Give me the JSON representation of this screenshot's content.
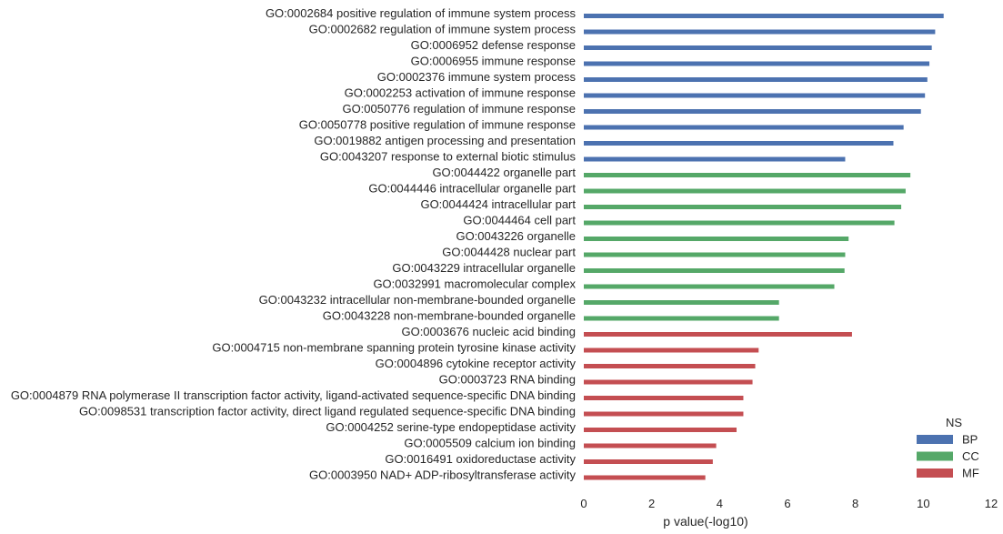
{
  "chart_data": {
    "type": "bar",
    "orientation": "horizontal",
    "xlabel": "p value(-log10)",
    "ylabel": "",
    "xlim": [
      0,
      12
    ],
    "xticks": [
      0,
      2,
      4,
      6,
      8,
      10,
      12
    ],
    "grid": false,
    "legend": {
      "title": "NS",
      "placement": "bottom-right",
      "entries": [
        {
          "name": "BP",
          "color": "#4C72B0"
        },
        {
          "name": "CC",
          "color": "#55A868"
        },
        {
          "name": "MF",
          "color": "#C44E52"
        }
      ]
    },
    "categories": [
      "GO:0002684 positive regulation of immune system process",
      "GO:0002682 regulation of immune system process",
      "GO:0006952 defense response",
      "GO:0006955 immune response",
      "GO:0002376 immune system process",
      "GO:0002253 activation of immune response",
      "GO:0050776 regulation of immune response",
      "GO:0050778 positive regulation of immune response",
      "GO:0019882 antigen processing and presentation",
      "GO:0043207 response to external biotic stimulus",
      "GO:0044422 organelle part",
      "GO:0044446 intracellular organelle part",
      "GO:0044424 intracellular part",
      "GO:0044464 cell part",
      "GO:0043226 organelle",
      "GO:0044428 nuclear part",
      "GO:0043229 intracellular organelle",
      "GO:0032991 macromolecular complex",
      "GO:0043232 intracellular non-membrane-bounded organelle",
      "GO:0043228 non-membrane-bounded organelle",
      "GO:0003676 nucleic acid binding",
      "GO:0004715 non-membrane spanning protein tyrosine kinase activity",
      "GO:0004896 cytokine receptor activity",
      "GO:0003723 RNA binding",
      "GO:0004879 RNA polymerase II transcription factor activity, ligand-activated sequence-specific DNA binding",
      "GO:0098531 transcription factor activity, direct ligand regulated sequence-specific DNA binding",
      "GO:0004252 serine-type endopeptidase activity",
      "GO:0005509 calcium ion binding",
      "GO:0016491 oxidoreductase activity",
      "GO:0003950 NAD+ ADP-ribosyltransferase activity"
    ],
    "groups": [
      "BP",
      "BP",
      "BP",
      "BP",
      "BP",
      "BP",
      "BP",
      "BP",
      "BP",
      "BP",
      "CC",
      "CC",
      "CC",
      "CC",
      "CC",
      "CC",
      "CC",
      "CC",
      "CC",
      "CC",
      "MF",
      "MF",
      "MF",
      "MF",
      "MF",
      "MF",
      "MF",
      "MF",
      "MF",
      "MF"
    ],
    "values": [
      10.6,
      10.35,
      10.25,
      10.18,
      10.12,
      10.05,
      9.93,
      9.42,
      9.12,
      7.7,
      9.62,
      9.48,
      9.35,
      9.15,
      7.8,
      7.7,
      7.68,
      7.38,
      5.75,
      5.75,
      7.9,
      5.15,
      5.05,
      4.97,
      4.7,
      4.7,
      4.5,
      3.9,
      3.8,
      3.58
    ]
  }
}
